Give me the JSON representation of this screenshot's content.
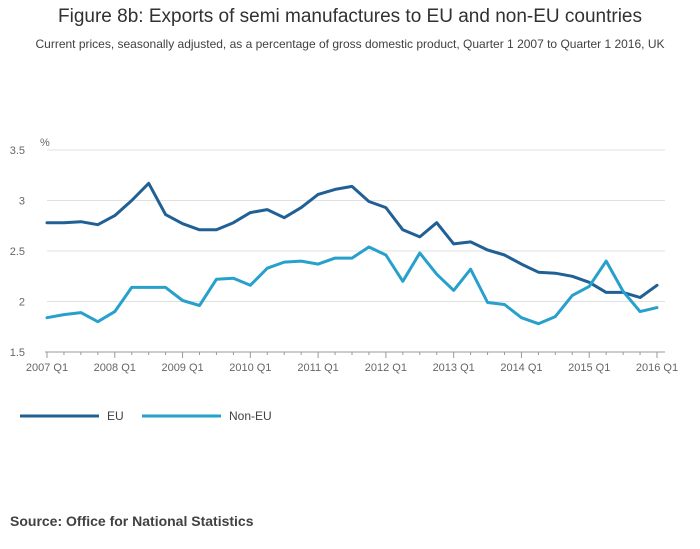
{
  "title": "Figure 8b: Exports of semi manufactures to EU and non-EU countries",
  "subtitle": "Current prices, seasonally adjusted, as a percentage of gross domestic product, Quarter 1 2007 to Quarter 1 2016, UK",
  "source": "Source: Office for National Statistics",
  "colors": {
    "eu": "#206095",
    "non_eu": "#27a0cc",
    "grid": "#e0e0e0",
    "axis": "#999999"
  },
  "chart_data": {
    "type": "line",
    "ylabel": "%",
    "ylim": [
      1.5,
      3.5
    ],
    "yticks": [
      1.5,
      2,
      2.5,
      3,
      3.5
    ],
    "ytick_labels": [
      "1.5",
      "2",
      "2.5",
      "3",
      "3.5"
    ],
    "xtick_labels": [
      "2007 Q1",
      "2008 Q1",
      "2009 Q1",
      "2010 Q1",
      "2011 Q1",
      "2012 Q1",
      "2013 Q1",
      "2014 Q1",
      "2015 Q1",
      "2016 Q1"
    ],
    "x": [
      "2007 Q1",
      "2007 Q2",
      "2007 Q3",
      "2007 Q4",
      "2008 Q1",
      "2008 Q2",
      "2008 Q3",
      "2008 Q4",
      "2009 Q1",
      "2009 Q2",
      "2009 Q3",
      "2009 Q4",
      "2010 Q1",
      "2010 Q2",
      "2010 Q3",
      "2010 Q4",
      "2011 Q1",
      "2011 Q2",
      "2011 Q3",
      "2011 Q4",
      "2012 Q1",
      "2012 Q2",
      "2012 Q3",
      "2012 Q4",
      "2013 Q1",
      "2013 Q2",
      "2013 Q3",
      "2013 Q4",
      "2014 Q1",
      "2014 Q2",
      "2014 Q3",
      "2014 Q4",
      "2015 Q1",
      "2015 Q2",
      "2015 Q3",
      "2015 Q4",
      "2016 Q1"
    ],
    "legend_position": "bottom-left",
    "grid": true,
    "series": [
      {
        "name": "EU",
        "color": "#206095",
        "values": [
          2.78,
          2.78,
          2.79,
          2.76,
          2.85,
          3.0,
          3.17,
          2.86,
          2.77,
          2.71,
          2.71,
          2.78,
          2.88,
          2.91,
          2.83,
          2.93,
          3.06,
          3.11,
          3.14,
          2.99,
          2.93,
          2.71,
          2.64,
          2.78,
          2.57,
          2.59,
          2.51,
          2.46,
          2.37,
          2.29,
          2.28,
          2.25,
          2.19,
          2.09,
          2.09,
          2.04,
          2.16
        ]
      },
      {
        "name": "Non-EU",
        "color": "#27a0cc",
        "values": [
          1.84,
          1.87,
          1.89,
          1.8,
          1.9,
          2.14,
          2.14,
          2.14,
          2.01,
          1.96,
          2.22,
          2.23,
          2.16,
          2.33,
          2.39,
          2.4,
          2.37,
          2.43,
          2.43,
          2.54,
          2.46,
          2.2,
          2.48,
          2.27,
          2.11,
          2.32,
          1.99,
          1.97,
          1.84,
          1.78,
          1.85,
          2.06,
          2.15,
          2.4,
          2.1,
          1.9,
          1.94
        ]
      }
    ]
  }
}
